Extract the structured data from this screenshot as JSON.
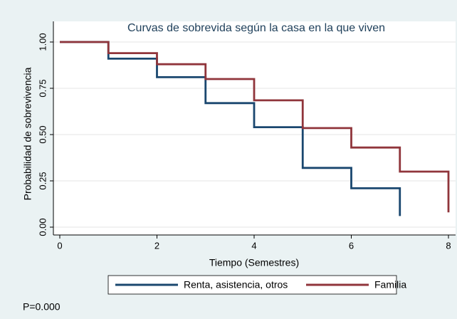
{
  "chart_data": {
    "type": "step",
    "title": "Curvas de sobrevida según la casa en la que viven",
    "x_label": "Tiempo (Semestres)",
    "y_label": "Probabilidad de sobrevivencia",
    "annotation": "P=0.000",
    "xlim": [
      0,
      8
    ],
    "xticks": [
      0,
      2,
      4,
      6,
      8
    ],
    "ylim": [
      0,
      1
    ],
    "yticks": [
      {
        "value": 0,
        "label": "0.00"
      },
      {
        "value": 0.25,
        "label": "0.25"
      },
      {
        "value": 0.5,
        "label": "0.50"
      },
      {
        "value": 0.75,
        "label": "0.75"
      },
      {
        "value": 1,
        "label": "1.00"
      }
    ],
    "grid": true,
    "series": [
      {
        "name": "Renta, asistencia, otros",
        "color": "#1a476f",
        "x": [
          0,
          1,
          2,
          3,
          4,
          5,
          6,
          7
        ],
        "values": [
          1,
          0.91,
          0.81,
          0.67,
          0.54,
          0.32,
          0.21,
          0.06
        ]
      },
      {
        "name": "Familia",
        "color": "#90353b",
        "x": [
          0,
          1,
          2,
          3,
          4,
          5,
          6,
          7,
          8
        ],
        "values": [
          1,
          0.94,
          0.88,
          0.8,
          0.685,
          0.535,
          0.43,
          0.3,
          0.08
        ]
      }
    ]
  }
}
